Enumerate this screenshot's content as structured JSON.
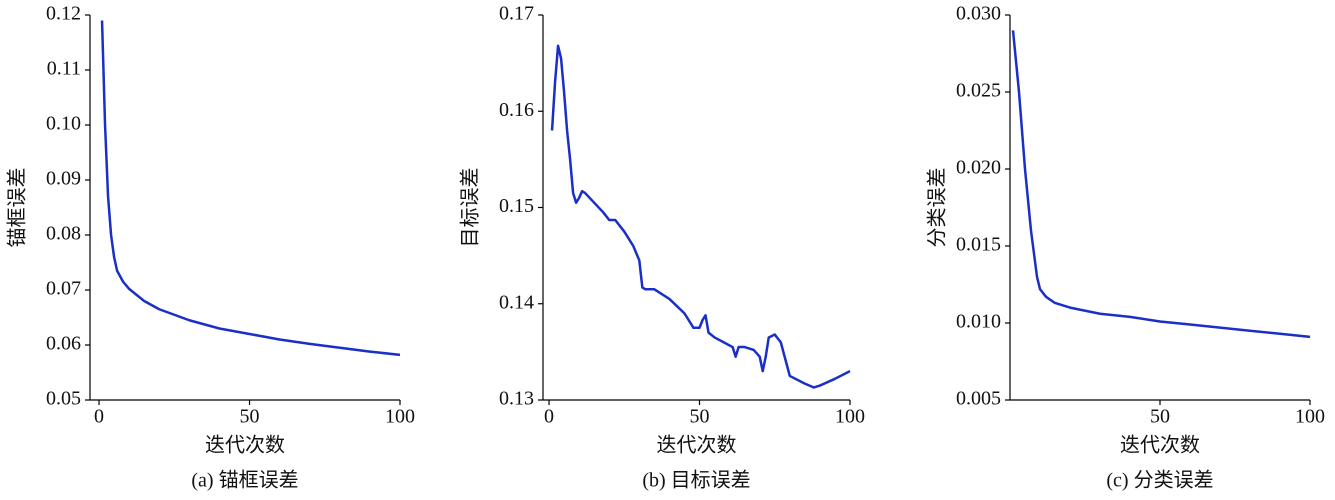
{
  "chart_data": [
    {
      "type": "line",
      "xlabel": "迭代次数",
      "ylabel": "锚框误差",
      "caption": "(a) 锚框误差",
      "x": [
        1,
        2,
        3,
        4,
        5,
        6,
        8,
        10,
        15,
        20,
        30,
        40,
        50,
        60,
        70,
        80,
        90,
        100
      ],
      "values": [
        0.119,
        0.1,
        0.087,
        0.08,
        0.076,
        0.0735,
        0.0715,
        0.0702,
        0.068,
        0.0665,
        0.0645,
        0.063,
        0.062,
        0.061,
        0.0602,
        0.0595,
        0.0588,
        0.0582
      ],
      "color": "#1a2fc8",
      "xlim": [
        -3,
        100
      ],
      "xticks": [
        0,
        50,
        100
      ],
      "ylim": [
        0.05,
        0.12
      ],
      "yticks": [
        0.05,
        0.06,
        0.07,
        0.08,
        0.09,
        {
          "value": 0.1,
          "label": "0.10"
        },
        0.11,
        0.12
      ]
    },
    {
      "type": "line",
      "xlabel": "迭代次数",
      "ylabel": "目标误差",
      "caption": "(b) 目标误差",
      "x": [
        1,
        2,
        3,
        4,
        5,
        6,
        7,
        8,
        9,
        10,
        11,
        12,
        15,
        18,
        20,
        22,
        25,
        28,
        30,
        31,
        32,
        35,
        40,
        45,
        48,
        50,
        51,
        52,
        53,
        55,
        58,
        61,
        62,
        63,
        65,
        68,
        70,
        71,
        72,
        73,
        75,
        77,
        80,
        85,
        88,
        90,
        95,
        100
      ],
      "values": [
        0.158,
        0.163,
        0.1668,
        0.1655,
        0.162,
        0.158,
        0.155,
        0.1515,
        0.1505,
        0.151,
        0.1517,
        0.1515,
        0.1505,
        0.1495,
        0.1487,
        0.1487,
        0.1475,
        0.146,
        0.1445,
        0.1417,
        0.1415,
        0.1415,
        0.1405,
        0.139,
        0.1375,
        0.1375,
        0.1383,
        0.1388,
        0.137,
        0.1365,
        0.136,
        0.1355,
        0.1345,
        0.1355,
        0.1355,
        0.1352,
        0.1345,
        0.133,
        0.1345,
        0.1365,
        0.1368,
        0.136,
        0.1325,
        0.1317,
        0.1313,
        0.1315,
        0.1322,
        0.133
      ],
      "color": "#1a2fc8",
      "xlim": [
        -2,
        100
      ],
      "xticks": [
        0,
        50,
        100
      ],
      "ylim": [
        0.13,
        0.17
      ],
      "yticks": [
        0.13,
        0.14,
        0.15,
        0.16,
        0.17
      ]
    },
    {
      "type": "line",
      "xlabel": "迭代次数",
      "ylabel": "分类误差",
      "caption": "(c) 分类误差",
      "x": [
        1,
        3,
        5,
        7,
        9,
        10,
        12,
        15,
        20,
        30,
        40,
        50,
        60,
        70,
        80,
        90,
        100
      ],
      "values": [
        0.029,
        0.025,
        0.02,
        0.016,
        0.013,
        0.0122,
        0.0117,
        0.0113,
        0.011,
        0.0106,
        0.0104,
        0.0101,
        0.0099,
        0.0097,
        0.0095,
        0.0093,
        0.0091
      ],
      "color": "#1a2fc8",
      "xlim": [
        0,
        100
      ],
      "xticks": [
        50,
        100
      ],
      "ylim": [
        0.005,
        0.03
      ],
      "yticks": [
        0.005,
        {
          "value": 0.01,
          "label": "0.010"
        },
        0.015,
        {
          "value": 0.02,
          "label": "0.020"
        },
        0.025,
        {
          "value": 0.03,
          "label": "0.030"
        }
      ]
    }
  ]
}
